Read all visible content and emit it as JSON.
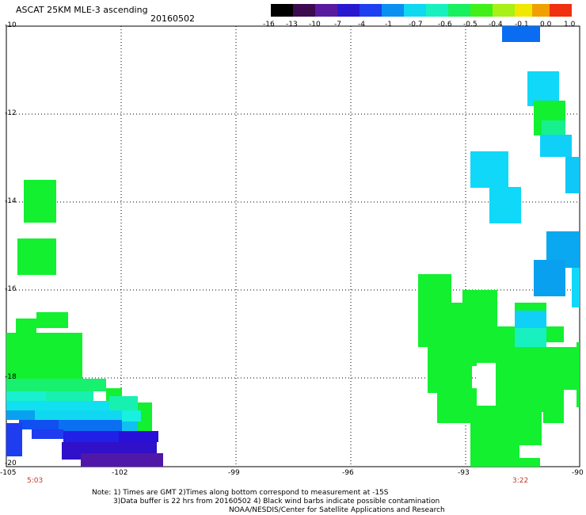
{
  "header": {
    "title": "ASCAT 25KM MLE-3 ascending",
    "date": "20160502"
  },
  "colorbar": {
    "tick_labels": [
      "-16",
      "-13",
      "-10",
      "-7",
      "-4",
      "-1",
      "-0.7",
      "-0.6",
      "-0.5",
      "-0.4",
      "-0.1",
      "0.0",
      "1.0"
    ],
    "colors": [
      "#000000",
      "#3c0a4e",
      "#5a1aa0",
      "#3014d8",
      "#1e3cf0",
      "#0a8cf0",
      "#14c8f0",
      "#18f0e0",
      "#19f08c",
      "#20f020",
      "#a0f020",
      "#f0f000",
      "#f0a000",
      "#f04000"
    ]
  },
  "map": {
    "lon_labels": [
      "-105",
      "-102",
      "-99",
      "-96",
      "-93",
      "-90"
    ],
    "lat_labels": [
      "-10",
      "-12",
      "-14",
      "-16",
      "-18",
      "-20"
    ],
    "time_labels": [
      "5:03",
      "3:22"
    ]
  },
  "notes": {
    "line1": "Note: 1) Times are GMT 2)Times along bottom correspond to measurement at -15S",
    "line2": "3)Data buffer is 22 hrs from 20160502 4) Black wind barbs indicate possible contamination",
    "line3": "NOAA/NESDIS/Center for Satellite Applications and Research"
  }
}
